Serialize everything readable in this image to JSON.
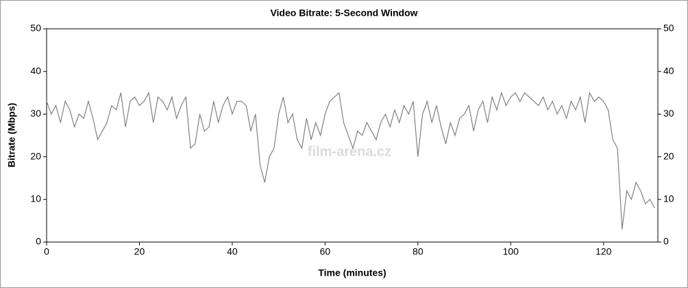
{
  "chart_data": {
    "type": "line",
    "title": "Video Bitrate: 5-Second Window",
    "x_label": "Time (minutes)",
    "y_label": "Bitrate (Mbps)",
    "watermark": "film-arena.cz",
    "color": "#808080",
    "x": [
      0,
      1,
      2,
      3,
      4,
      5,
      6,
      7,
      8,
      9,
      10,
      11,
      12,
      13,
      14,
      15,
      16,
      17,
      18,
      19,
      20,
      21,
      22,
      23,
      24,
      25,
      26,
      27,
      28,
      29,
      30,
      31,
      32,
      33,
      34,
      35,
      36,
      37,
      38,
      39,
      40,
      41,
      42,
      43,
      44,
      45,
      46,
      47,
      48,
      49,
      50,
      51,
      52,
      53,
      54,
      55,
      56,
      57,
      58,
      59,
      60,
      61,
      62,
      63,
      64,
      65,
      66,
      67,
      68,
      69,
      70,
      71,
      72,
      73,
      74,
      75,
      76,
      77,
      78,
      79,
      80,
      81,
      82,
      83,
      84,
      85,
      86,
      87,
      88,
      89,
      90,
      91,
      92,
      93,
      94,
      95,
      96,
      97,
      98,
      99,
      100,
      101,
      102,
      103,
      104,
      105,
      106,
      107,
      108,
      109,
      110,
      111,
      112,
      113,
      114,
      115,
      116,
      117,
      118,
      119,
      120,
      121,
      122,
      123,
      124,
      125,
      126,
      127,
      128,
      129,
      130,
      131
    ],
    "values": [
      33,
      30,
      32,
      28,
      33,
      31,
      27,
      30,
      29,
      33,
      29,
      24,
      26,
      28,
      32,
      31,
      35,
      27,
      33,
      34,
      32,
      33,
      35,
      28,
      34,
      33,
      31,
      34,
      29,
      32,
      34,
      22,
      23,
      30,
      26,
      27,
      33,
      28,
      32,
      34,
      30,
      33,
      33,
      32,
      26,
      30,
      18,
      14,
      20,
      22,
      30,
      34,
      28,
      30,
      24,
      22,
      29,
      24,
      28,
      25,
      30,
      33,
      34,
      35,
      28,
      25,
      22,
      26,
      25,
      28,
      26,
      24,
      28,
      30,
      27,
      31,
      28,
      32,
      30,
      33,
      20,
      30,
      33,
      28,
      32,
      27,
      23,
      28,
      25,
      29,
      30,
      32,
      26,
      31,
      33,
      28,
      34,
      31,
      35,
      32,
      34,
      35,
      33,
      35,
      34,
      33,
      32,
      34,
      31,
      33,
      30,
      32,
      29,
      33,
      31,
      34,
      28,
      35,
      33,
      34,
      33,
      31,
      24,
      22,
      3,
      12,
      10,
      14,
      12,
      9,
      10,
      8
    ],
    "xlim": [
      0,
      131.7
    ],
    "ylim": [
      0,
      50
    ],
    "xticks": [
      0,
      20,
      40,
      60,
      80,
      100,
      120
    ],
    "yticks": [
      0,
      10,
      20,
      30,
      40,
      50
    ]
  }
}
